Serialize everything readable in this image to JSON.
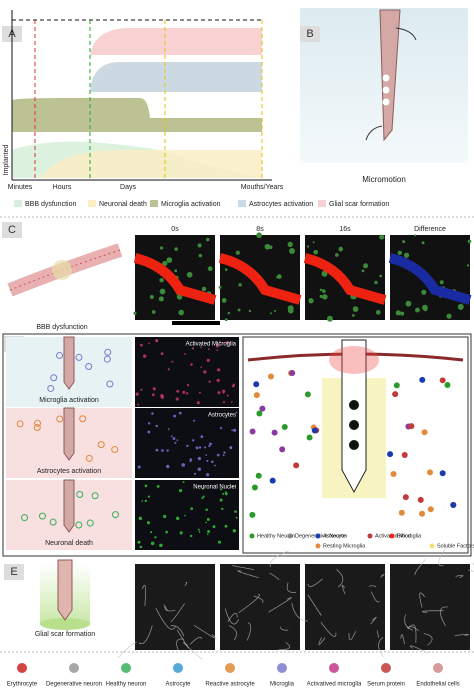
{
  "panel_a": {
    "label": "A",
    "y_axis_label": "Implanted",
    "x_labels": [
      "Minutes",
      "Hours",
      "Days",
      "Mouths/Years"
    ],
    "legend": [
      "BBB dysfunction",
      "Neuronal death",
      "Microglia activation",
      "Astrocytes activation",
      "Glial scar formation"
    ]
  },
  "panel_b": {
    "label": "B",
    "caption": "Micromotion"
  },
  "panel_c": {
    "label": "C",
    "caption": "BBB dysfunction",
    "frames": [
      "0s",
      "8s",
      "16s",
      "Difference"
    ]
  },
  "panel_d": {
    "label": "D",
    "stages": [
      "Microglia activation",
      "Astrocytes activation",
      "Neuronal death"
    ],
    "images": [
      "Activated Microglia",
      "Astrocytes",
      "Neuronal Nuclei"
    ],
    "legend": [
      "Healthy Neuron",
      "Degenerative Neuron",
      "Astrocyte",
      "Activated Microglia",
      "Resting Microglia",
      "Blood",
      "Soluble Factors"
    ]
  },
  "panel_e": {
    "label": "E",
    "caption": "Glial scar formation"
  },
  "cell_legend": [
    "Erythrocyte",
    "Degenerative neuron",
    "Healthy neuron",
    "Astrocyte",
    "Reactive astrocyte",
    "Microglia",
    "Activatived microglia",
    "Serum protein",
    "Endothelial cells"
  ]
}
